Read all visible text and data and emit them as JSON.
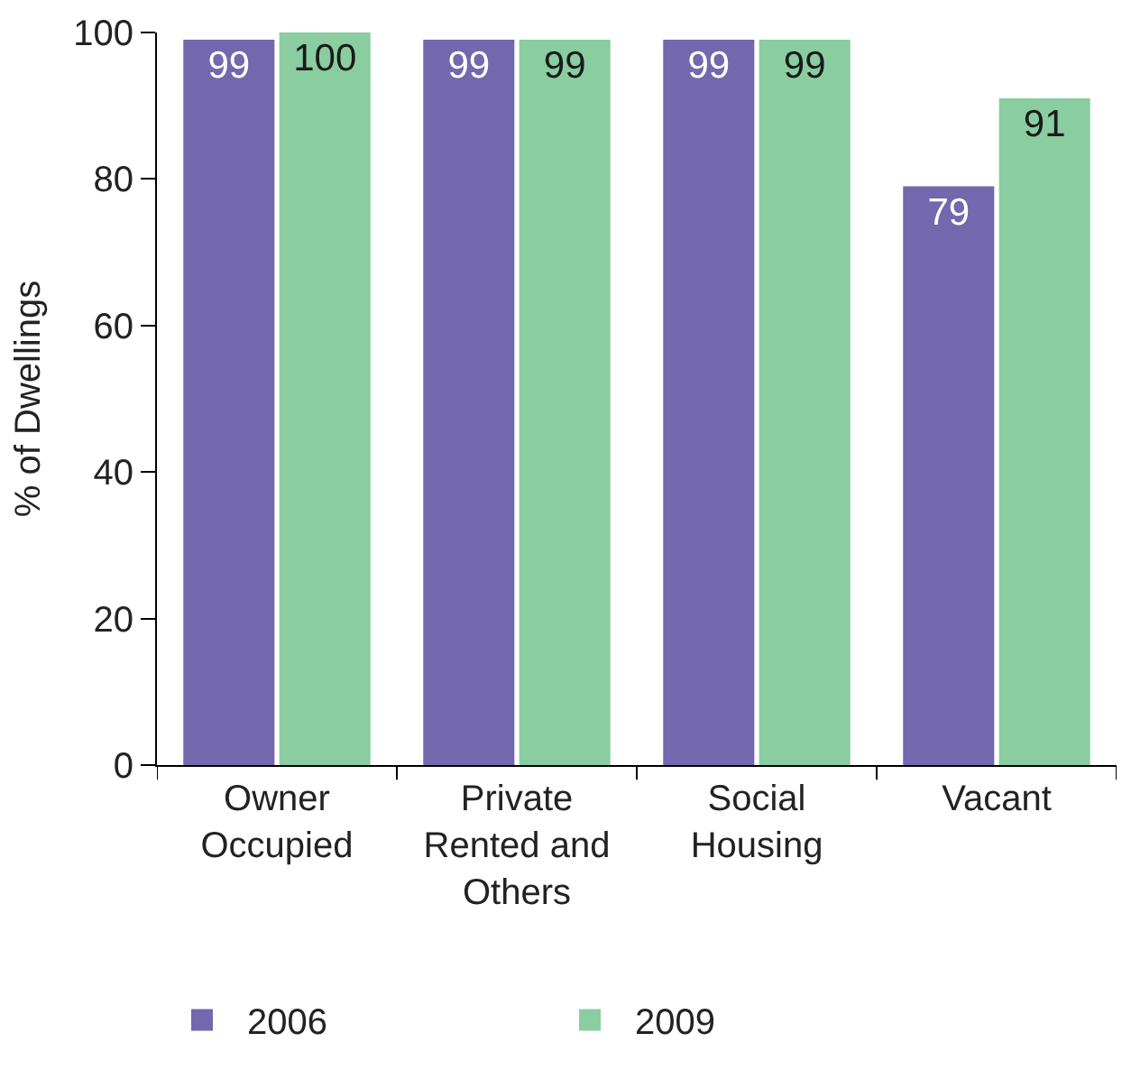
{
  "chart_data": {
    "type": "bar",
    "ylabel": "% of Dwellings",
    "categories": [
      "Owner Occupied",
      "Private Rented and Others",
      "Social Housing",
      "Vacant"
    ],
    "series": [
      {
        "name": "2006",
        "color": "#7367ad",
        "values": [
          99,
          99,
          99,
          79
        ]
      },
      {
        "name": "2009",
        "color": "#8acda0",
        "values": [
          100,
          99,
          99,
          91
        ]
      }
    ],
    "ylim": [
      0,
      100
    ],
    "yticks": [
      0,
      20,
      40,
      60,
      80,
      100
    ],
    "data_labels": true,
    "legend": "bottom"
  }
}
